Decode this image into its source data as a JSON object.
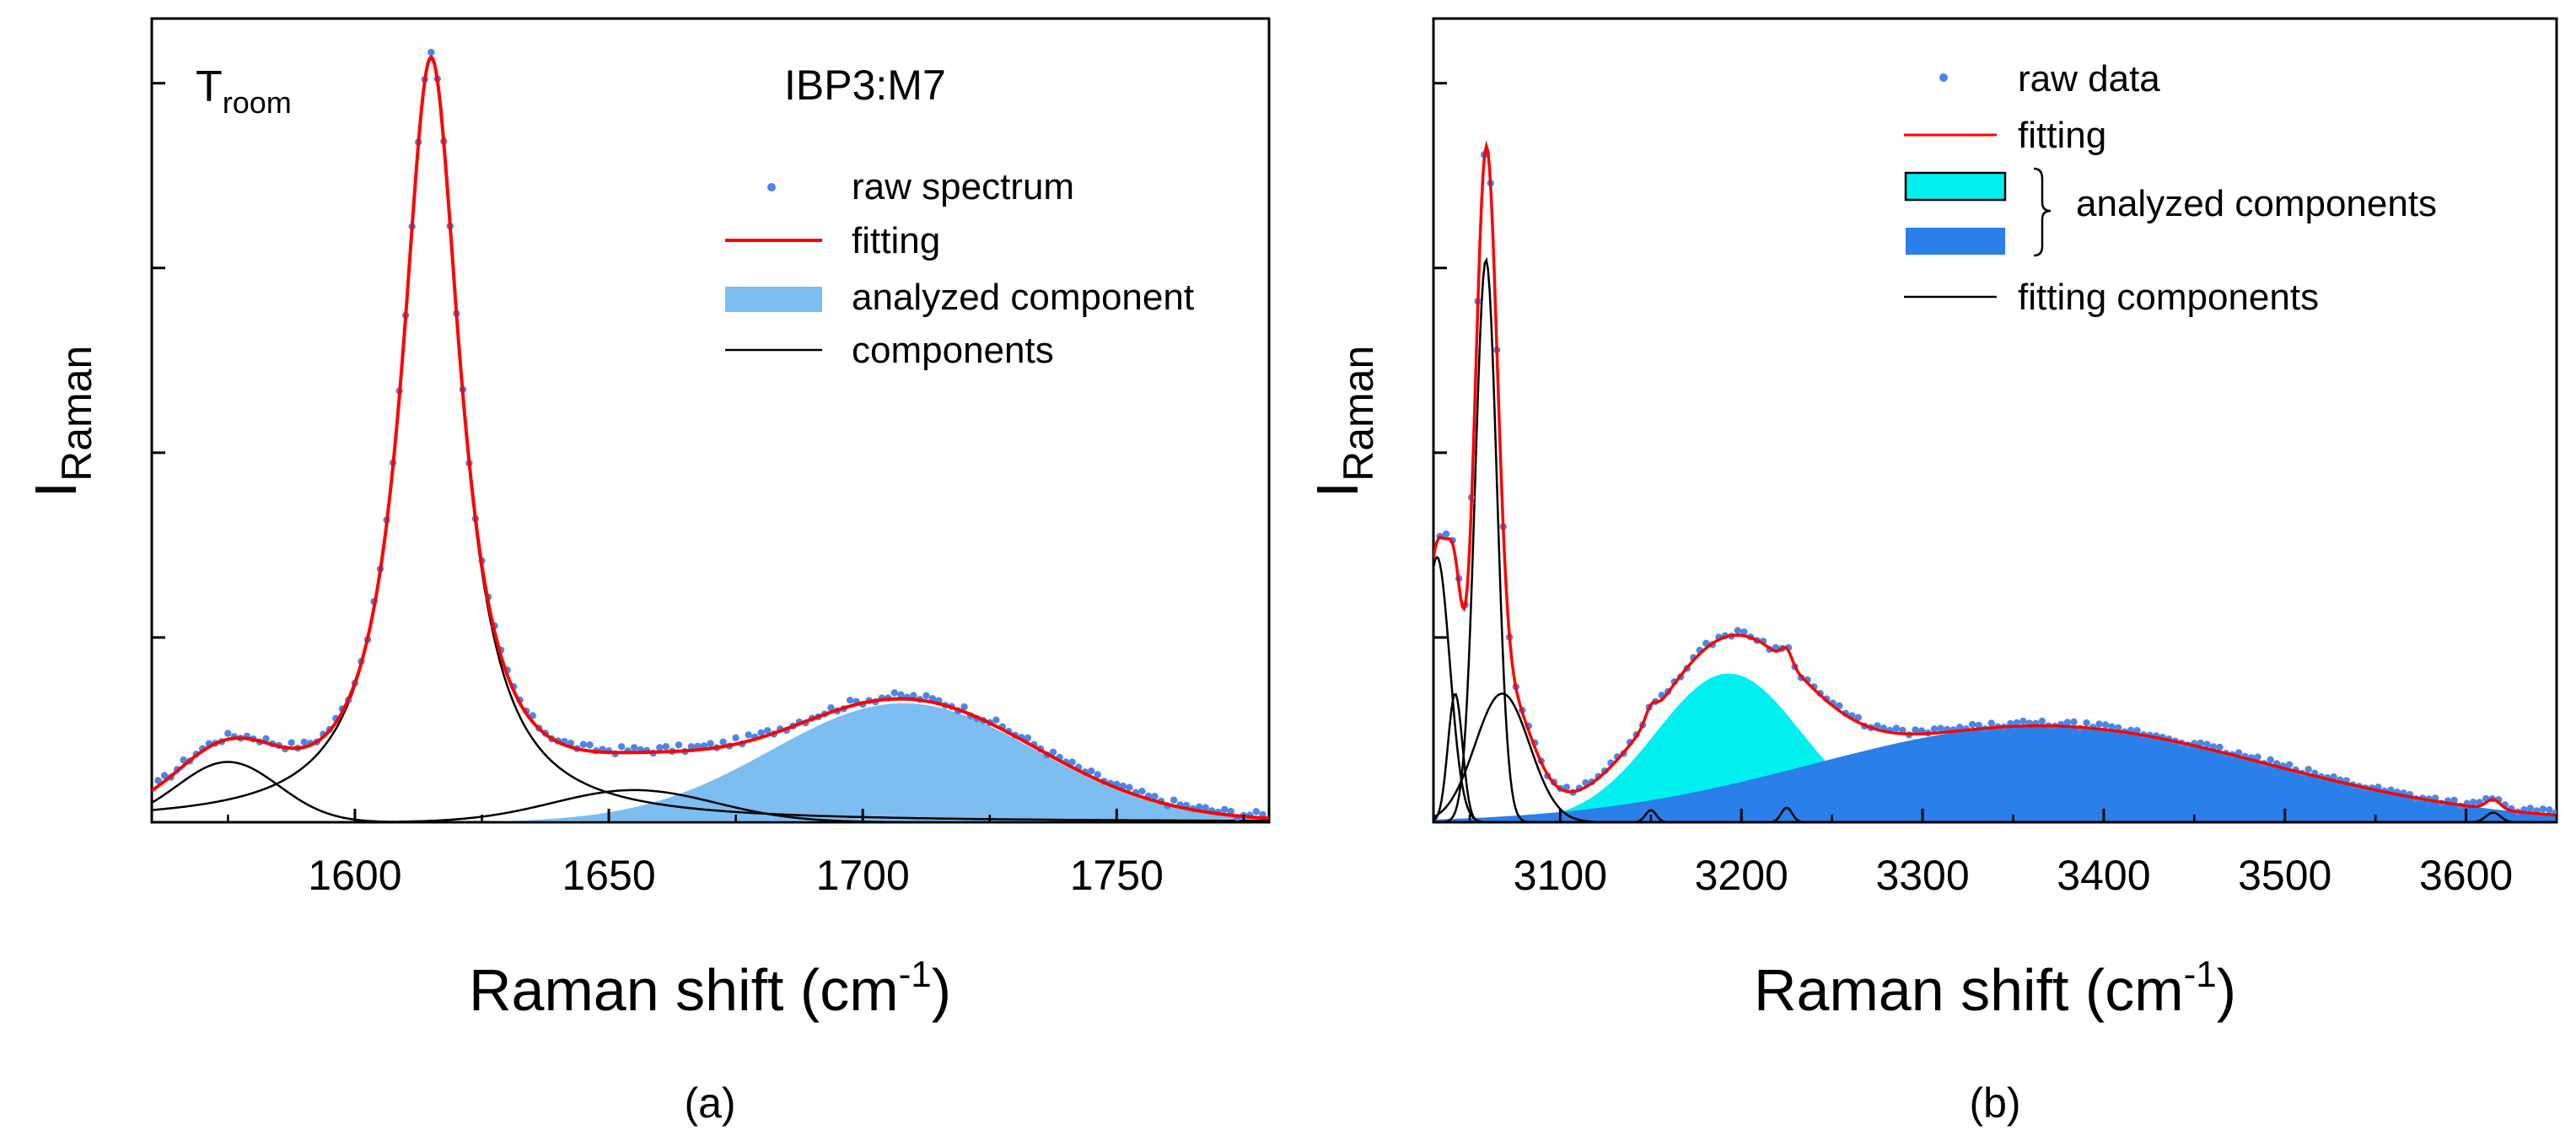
{
  "chart_data": [
    {
      "id": "a",
      "type": "line",
      "panel_label": "(a)",
      "xlabel": "Raman shift (cm",
      "xlabel_sup": "-1",
      "xlabel_close": ")",
      "ylabel_main": "I",
      "ylabel_sub": "Raman",
      "annotation_label": "IBP3:M7",
      "temperature_main": "T",
      "temperature_sub": "room",
      "xlim": [
        1560,
        1780
      ],
      "ylim": [
        0,
        1.0
      ],
      "xticks": [
        1600,
        1650,
        1700,
        1750
      ],
      "ytick_count": 4,
      "colors": {
        "raw": "#4a86e8",
        "fit": "#ff0000",
        "analyzed": "#7cbdf2",
        "component": "#000000"
      },
      "legend": {
        "raw": "raw spectrum",
        "fit": "fitting",
        "analyzed": "analyzed component",
        "component": "components"
      },
      "components": [
        {
          "center": 1575,
          "amplitude": 0.075,
          "width": 10,
          "shape": "gaussian"
        },
        {
          "center": 1615,
          "amplitude": 0.95,
          "width": 7,
          "shape": "lorentzian"
        },
        {
          "center": 1655,
          "amplitude": 0.04,
          "width": 16,
          "shape": "gaussian"
        }
      ],
      "analyzed_component": {
        "center": 1708,
        "amplitude": 0.148,
        "width": 26,
        "shape": "gaussian"
      },
      "raw_spectrum_step": 1.25,
      "raw_spectrum_noise": 0.005
    },
    {
      "id": "b",
      "type": "line",
      "panel_label": "(b)",
      "xlabel": "Raman shift (cm",
      "xlabel_sup": "-1",
      "xlabel_close": ")",
      "ylabel_main": "I",
      "ylabel_sub": "Raman",
      "xlim": [
        3030,
        3650
      ],
      "ylim": [
        0,
        1.0
      ],
      "xticks": [
        3100,
        3200,
        3300,
        3400,
        3500,
        3600
      ],
      "ytick_count": 4,
      "colors": {
        "raw": "#4a86e8",
        "fit": "#ff0000",
        "analyzed1": "#00f0f0",
        "analyzed2": "#2a7fe8",
        "component": "#000000"
      },
      "legend": {
        "raw": "raw data",
        "fit": "fitting",
        "analyzed": "analyzed components",
        "component": "fitting components"
      },
      "components": [
        {
          "center": 3032,
          "amplitude": 0.33,
          "width": 7,
          "shape": "gaussian"
        },
        {
          "center": 3042,
          "amplitude": 0.16,
          "width": 4,
          "shape": "gaussian"
        },
        {
          "center": 3059,
          "amplitude": 0.7,
          "width": 6,
          "shape": "gaussian"
        },
        {
          "center": 3068,
          "amplitude": 0.16,
          "width": 15,
          "shape": "gaussian"
        },
        {
          "center": 3150,
          "amplitude": 0.015,
          "width": 3,
          "shape": "gaussian"
        },
        {
          "center": 3225,
          "amplitude": 0.018,
          "width": 3,
          "shape": "gaussian"
        },
        {
          "center": 3615,
          "amplitude": 0.012,
          "width": 4,
          "shape": "gaussian"
        }
      ],
      "analyzed_components": [
        {
          "center": 3193,
          "amplitude": 0.185,
          "width": 40,
          "shape": "gaussian",
          "color_key": "analyzed1"
        },
        {
          "center": 3365,
          "amplitude": 0.12,
          "width": 125,
          "shape": "gaussian",
          "color_key": "analyzed2"
        }
      ],
      "raw_spectrum_step": 3.5,
      "raw_spectrum_noise": 0.004
    }
  ]
}
